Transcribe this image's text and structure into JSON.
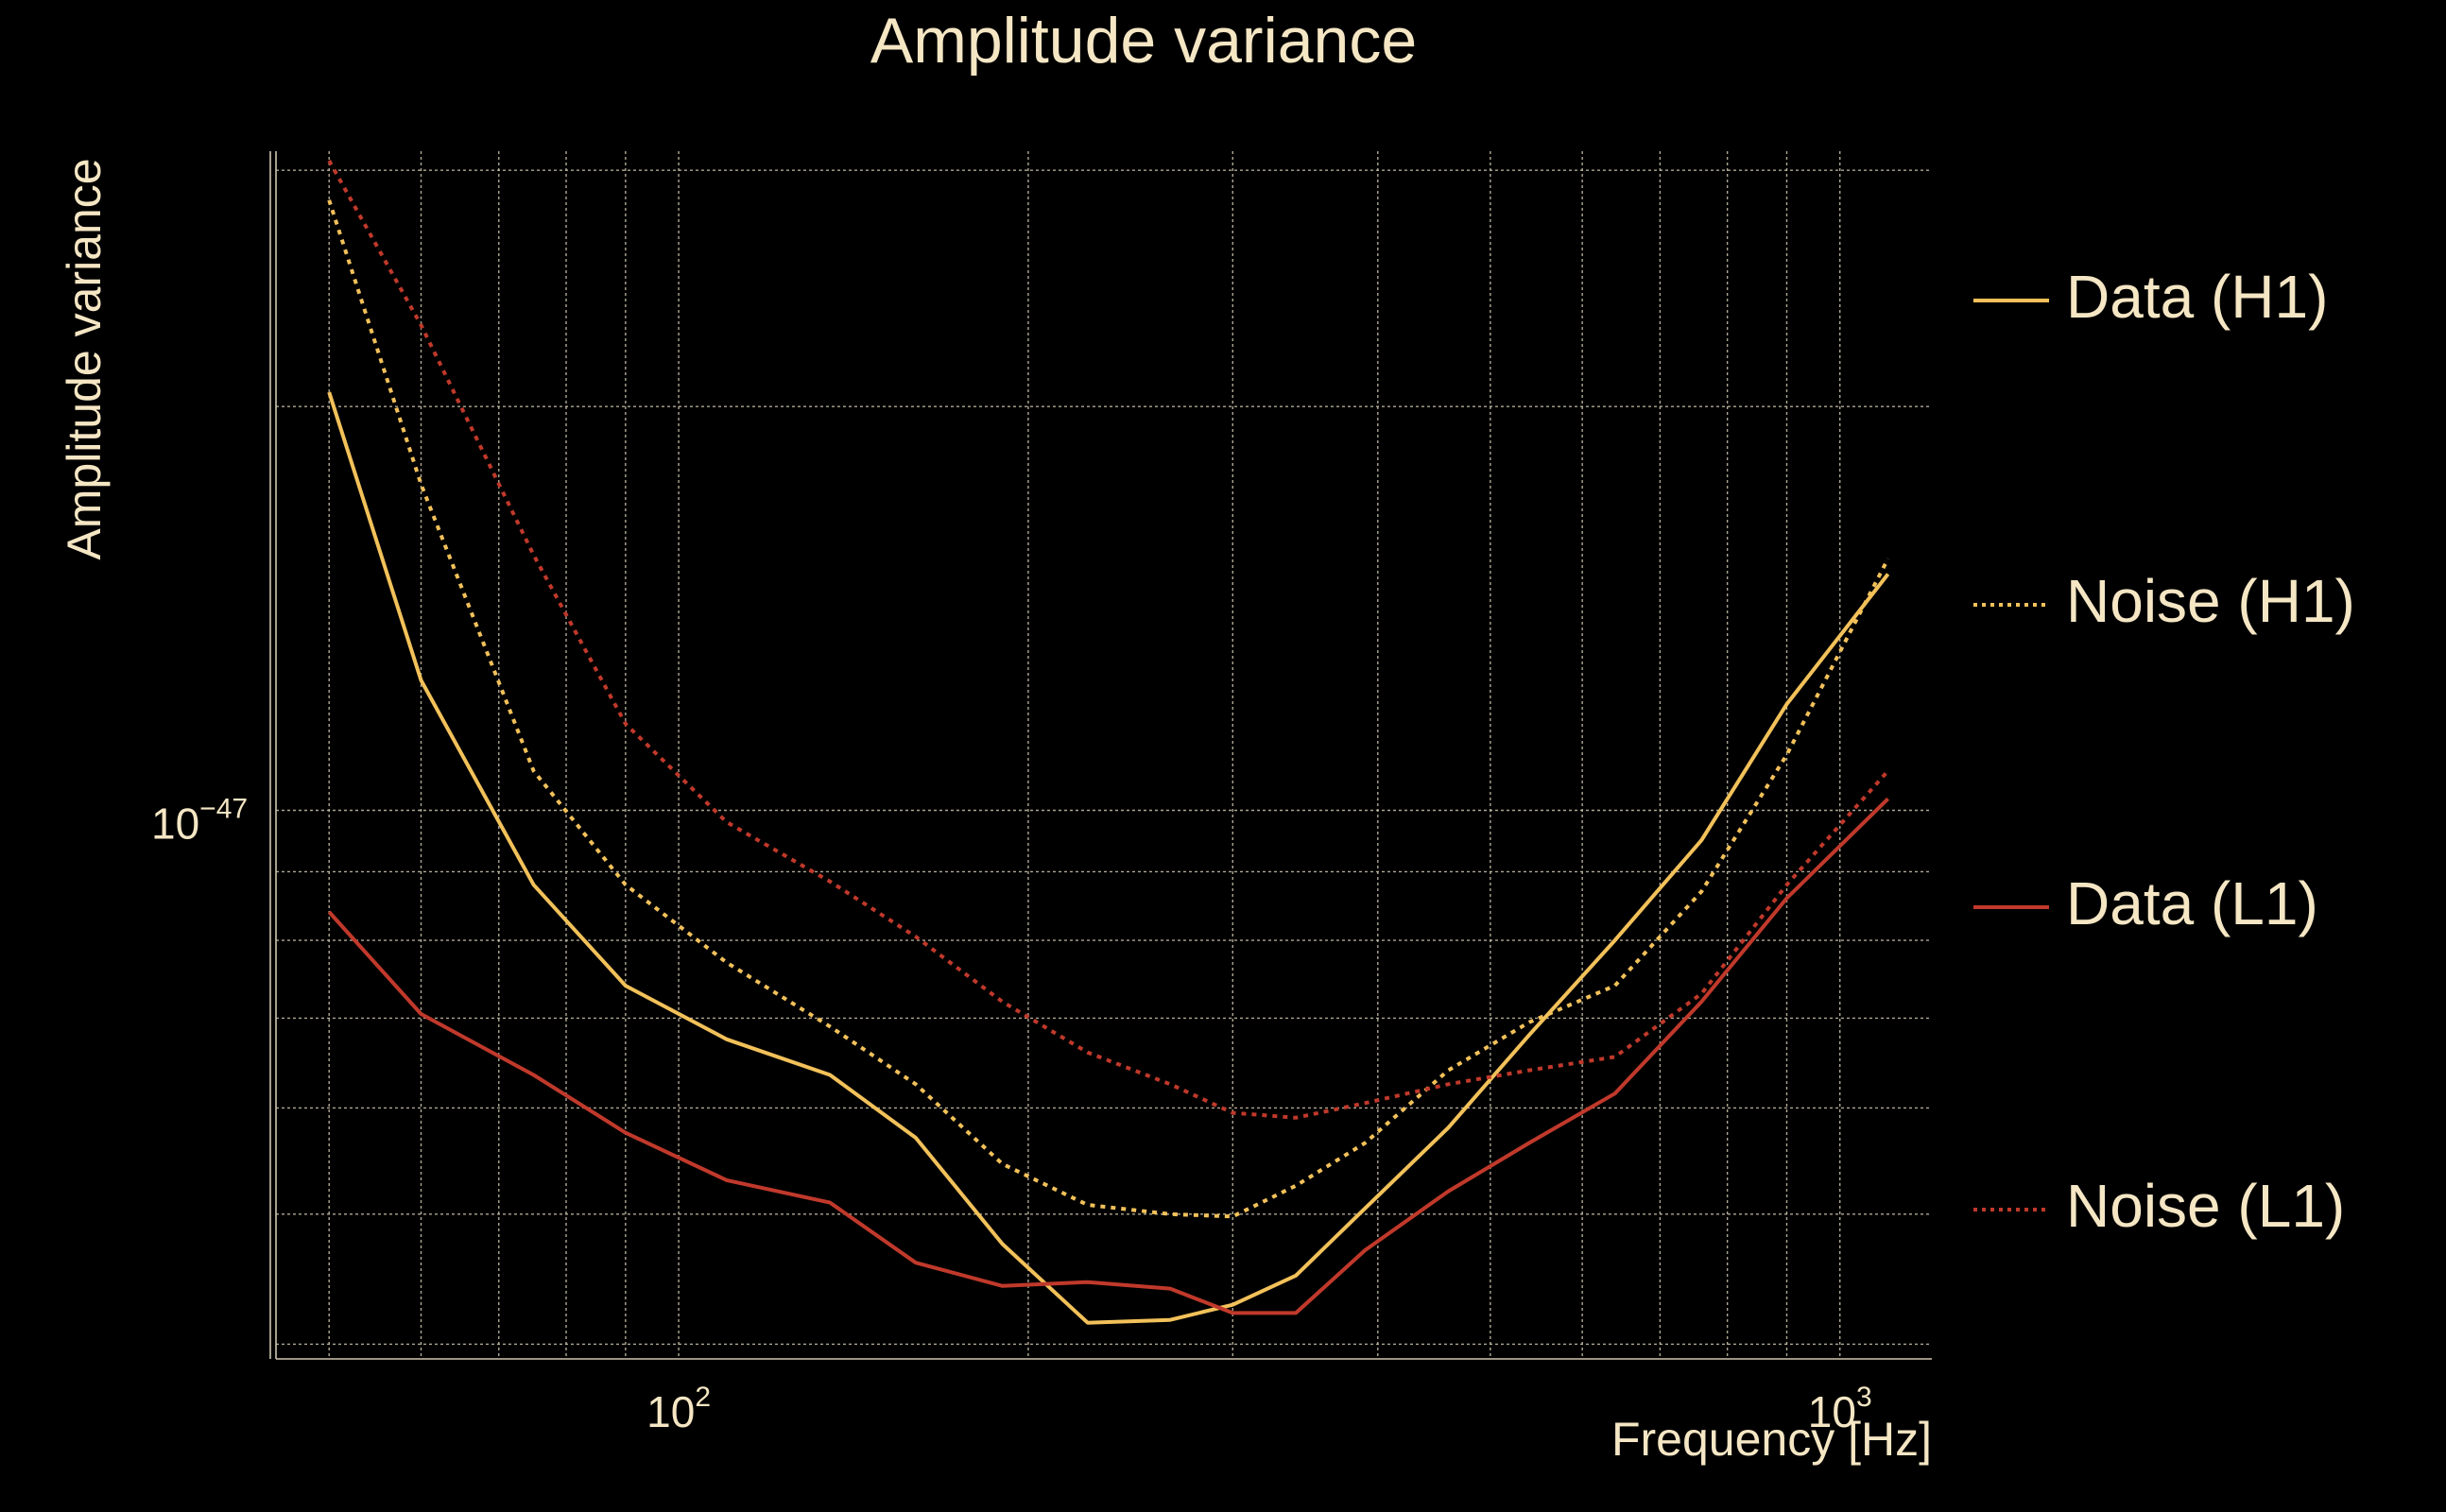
{
  "chart_data": {
    "type": "line",
    "title": "Amplitude variance",
    "xlabel": "Frequency [Hz]",
    "ylabel": "Amplitude variance",
    "xscale": "log",
    "yscale": "log",
    "xlim": [
      45,
      1200
    ],
    "ylim": [
      3.9e-48,
      3.1e-47
    ],
    "x_ticks": [
      {
        "value": 100,
        "base": "10",
        "exp": "2"
      },
      {
        "value": 1000,
        "base": "10",
        "exp": "3"
      }
    ],
    "y_ticks": [
      {
        "value": 1e-47,
        "base": "10",
        "exp": "−47"
      }
    ],
    "grid": true,
    "legend_position": "right",
    "series": [
      {
        "name": "Data (H1)",
        "color": "#f2c15a",
        "style": "solid",
        "x": [
          50,
          60,
          75,
          90,
          110,
          135,
          160,
          190,
          225,
          265,
          300,
          340,
          390,
          460,
          540,
          640,
          760,
          900,
          1100
        ],
        "y": [
          2.05e-47,
          1.25e-47,
          8.8e-48,
          7.4e-48,
          6.75e-48,
          6.35e-48,
          5.7e-48,
          4.75e-48,
          4.15e-48,
          4.17e-48,
          4.28e-48,
          4.5e-48,
          5.05e-48,
          5.8e-48,
          6.8e-48,
          8e-48,
          9.5e-48,
          1.2e-47,
          1.5e-47
        ]
      },
      {
        "name": "Noise (H1)",
        "color": "#f2c15a",
        "style": "dotted",
        "x": [
          50,
          60,
          75,
          90,
          110,
          135,
          160,
          190,
          225,
          265,
          300,
          340,
          390,
          460,
          540,
          640,
          760,
          900,
          1100
        ],
        "y": [
          2.85e-47,
          1.75e-47,
          1.07e-47,
          8.8e-48,
          7.7e-48,
          6.9e-48,
          6.25e-48,
          5.45e-48,
          5.08e-48,
          5e-48,
          4.98e-48,
          5.25e-48,
          5.65e-48,
          6.4e-48,
          6.95e-48,
          7.4e-48,
          8.7e-48,
          1.1e-47,
          1.54e-47
        ]
      },
      {
        "name": "Data (L1)",
        "color": "#c0392b",
        "style": "solid",
        "x": [
          50,
          60,
          75,
          90,
          110,
          135,
          160,
          190,
          225,
          265,
          300,
          340,
          390,
          460,
          540,
          640,
          760,
          900,
          1100
        ],
        "y": [
          8.4e-48,
          7.05e-48,
          6.35e-48,
          5.75e-48,
          5.3e-48,
          5.1e-48,
          4.6e-48,
          4.42e-48,
          4.45e-48,
          4.4e-48,
          4.22e-48,
          4.22e-48,
          4.7e-48,
          5.2e-48,
          5.65e-48,
          6.15e-48,
          7.2e-48,
          8.6e-48,
          1.02e-47
        ]
      },
      {
        "name": "Noise (L1)",
        "color": "#c0392b",
        "style": "dotted",
        "x": [
          50,
          60,
          75,
          90,
          110,
          135,
          160,
          190,
          225,
          265,
          300,
          340,
          390,
          460,
          540,
          640,
          760,
          900,
          1100
        ],
        "y": [
          3.05e-47,
          2.3e-47,
          1.55e-47,
          1.16e-47,
          9.8e-48,
          8.85e-48,
          8.05e-48,
          7.2e-48,
          6.6e-48,
          6.25e-48,
          5.95e-48,
          5.9e-48,
          6.05e-48,
          6.25e-48,
          6.4e-48,
          6.55e-48,
          7.3e-48,
          8.8e-48,
          1.07e-47
        ]
      }
    ]
  }
}
